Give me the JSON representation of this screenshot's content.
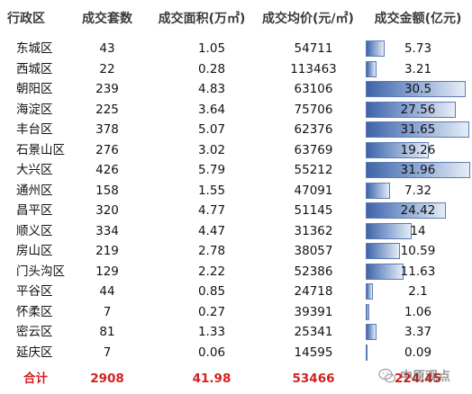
{
  "headers": {
    "district": "行政区",
    "count": "成交套数",
    "area": "成交面积(万㎡)",
    "price": "成交均价(元/㎡)",
    "amount": "成交金额(亿元)"
  },
  "rows": [
    {
      "district": "东城区",
      "count": "43",
      "area": "1.05",
      "price": "54711",
      "amount": "5.73",
      "amount_value": 5.73
    },
    {
      "district": "西城区",
      "count": "22",
      "area": "0.28",
      "price": "113463",
      "amount": "3.21",
      "amount_value": 3.21
    },
    {
      "district": "朝阳区",
      "count": "239",
      "area": "4.83",
      "price": "63106",
      "amount": "30.5",
      "amount_value": 30.5
    },
    {
      "district": "海淀区",
      "count": "225",
      "area": "3.64",
      "price": "75706",
      "amount": "27.56",
      "amount_value": 27.56
    },
    {
      "district": "丰台区",
      "count": "378",
      "area": "5.07",
      "price": "62376",
      "amount": "31.65",
      "amount_value": 31.65
    },
    {
      "district": "石景山区",
      "count": "276",
      "area": "3.02",
      "price": "63769",
      "amount": "19.26",
      "amount_value": 19.26
    },
    {
      "district": "大兴区",
      "count": "426",
      "area": "5.79",
      "price": "55212",
      "amount": "31.96",
      "amount_value": 31.96
    },
    {
      "district": "通州区",
      "count": "158",
      "area": "1.55",
      "price": "47091",
      "amount": "7.32",
      "amount_value": 7.32
    },
    {
      "district": "昌平区",
      "count": "320",
      "area": "4.77",
      "price": "51145",
      "amount": "24.42",
      "amount_value": 24.42
    },
    {
      "district": "顺义区",
      "count": "334",
      "area": "4.47",
      "price": "31362",
      "amount": "14",
      "amount_value": 14
    },
    {
      "district": "房山区",
      "count": "219",
      "area": "2.78",
      "price": "38057",
      "amount": "10.59",
      "amount_value": 10.59
    },
    {
      "district": "门头沟区",
      "count": "129",
      "area": "2.22",
      "price": "52386",
      "amount": "11.63",
      "amount_value": 11.63
    },
    {
      "district": "平谷区",
      "count": "44",
      "area": "0.85",
      "price": "24718",
      "amount": "2.1",
      "amount_value": 2.1
    },
    {
      "district": "怀柔区",
      "count": "7",
      "area": "0.27",
      "price": "39391",
      "amount": "1.06",
      "amount_value": 1.06
    },
    {
      "district": "密云区",
      "count": "81",
      "area": "1.33",
      "price": "25341",
      "amount": "3.37",
      "amount_value": 3.37
    },
    {
      "district": "延庆区",
      "count": "7",
      "area": "0.06",
      "price": "14595",
      "amount": "0.09",
      "amount_value": 0.09
    }
  ],
  "total": {
    "label": "合计",
    "count": "2908",
    "area": "41.98",
    "price": "53466",
    "amount": "224.45"
  },
  "bar_max_value": 31.96,
  "watermark": {
    "text": "中原观点",
    "icon": "wechat-icon"
  },
  "colors": {
    "bar": "#3e64a8",
    "total": "#d42020",
    "header": "#3a3a3a"
  }
}
